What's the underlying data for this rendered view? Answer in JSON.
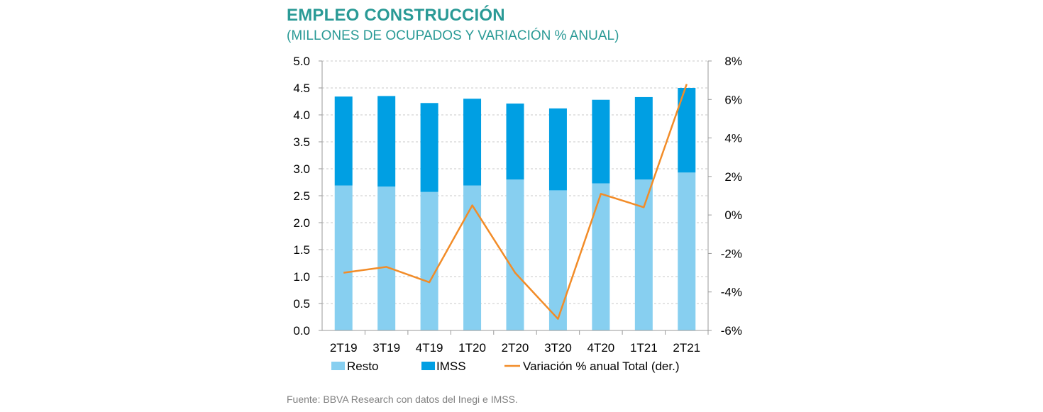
{
  "title": "EMPLEO CONSTRUCCIÓN",
  "subtitle": "(MILLONES DE OCUPADOS Y VARIACIÓN % ANUAL)",
  "source": "Fuente: BBVA Research con datos del Inegi e IMSS.",
  "colors": {
    "resto": "#87cff0",
    "imss": "#009fe3",
    "line": "#f28c28",
    "grid": "#c8c8c8",
    "title": "#2a9a96"
  },
  "chart_data": {
    "type": "bar",
    "stacked": true,
    "categories": [
      "2T19",
      "3T19",
      "4T19",
      "1T20",
      "2T20",
      "3T20",
      "4T20",
      "1T21",
      "2T21"
    ],
    "series": [
      {
        "name": "Resto",
        "axis": "left",
        "values": [
          2.69,
          2.67,
          2.57,
          2.69,
          2.8,
          2.6,
          2.73,
          2.8,
          2.93
        ]
      },
      {
        "name": "IMSS",
        "axis": "left",
        "values": [
          1.65,
          1.68,
          1.65,
          1.61,
          1.41,
          1.52,
          1.55,
          1.53,
          1.57
        ]
      },
      {
        "name": "Variación % anual Total (der.)",
        "axis": "right",
        "type": "line",
        "values": [
          -3.0,
          -2.7,
          -3.5,
          0.5,
          -3.0,
          -5.4,
          1.1,
          0.4,
          6.8
        ]
      }
    ],
    "y_left": {
      "min": 0,
      "max": 5,
      "step": 0.5,
      "tick_labels": [
        "0.0",
        "0.5",
        "1.0",
        "1.5",
        "2.0",
        "2.5",
        "3.0",
        "3.5",
        "4.0",
        "4.5",
        "5.0"
      ]
    },
    "y_right": {
      "min": -6,
      "max": 8,
      "step": 2,
      "tick_labels": [
        "-6%",
        "-4%",
        "-2%",
        "0%",
        "2%",
        "4%",
        "6%",
        "8%"
      ]
    },
    "legend": [
      "Resto",
      "IMSS",
      "Variación % anual Total (der.)"
    ],
    "legend_position": "bottom",
    "grid": true
  }
}
